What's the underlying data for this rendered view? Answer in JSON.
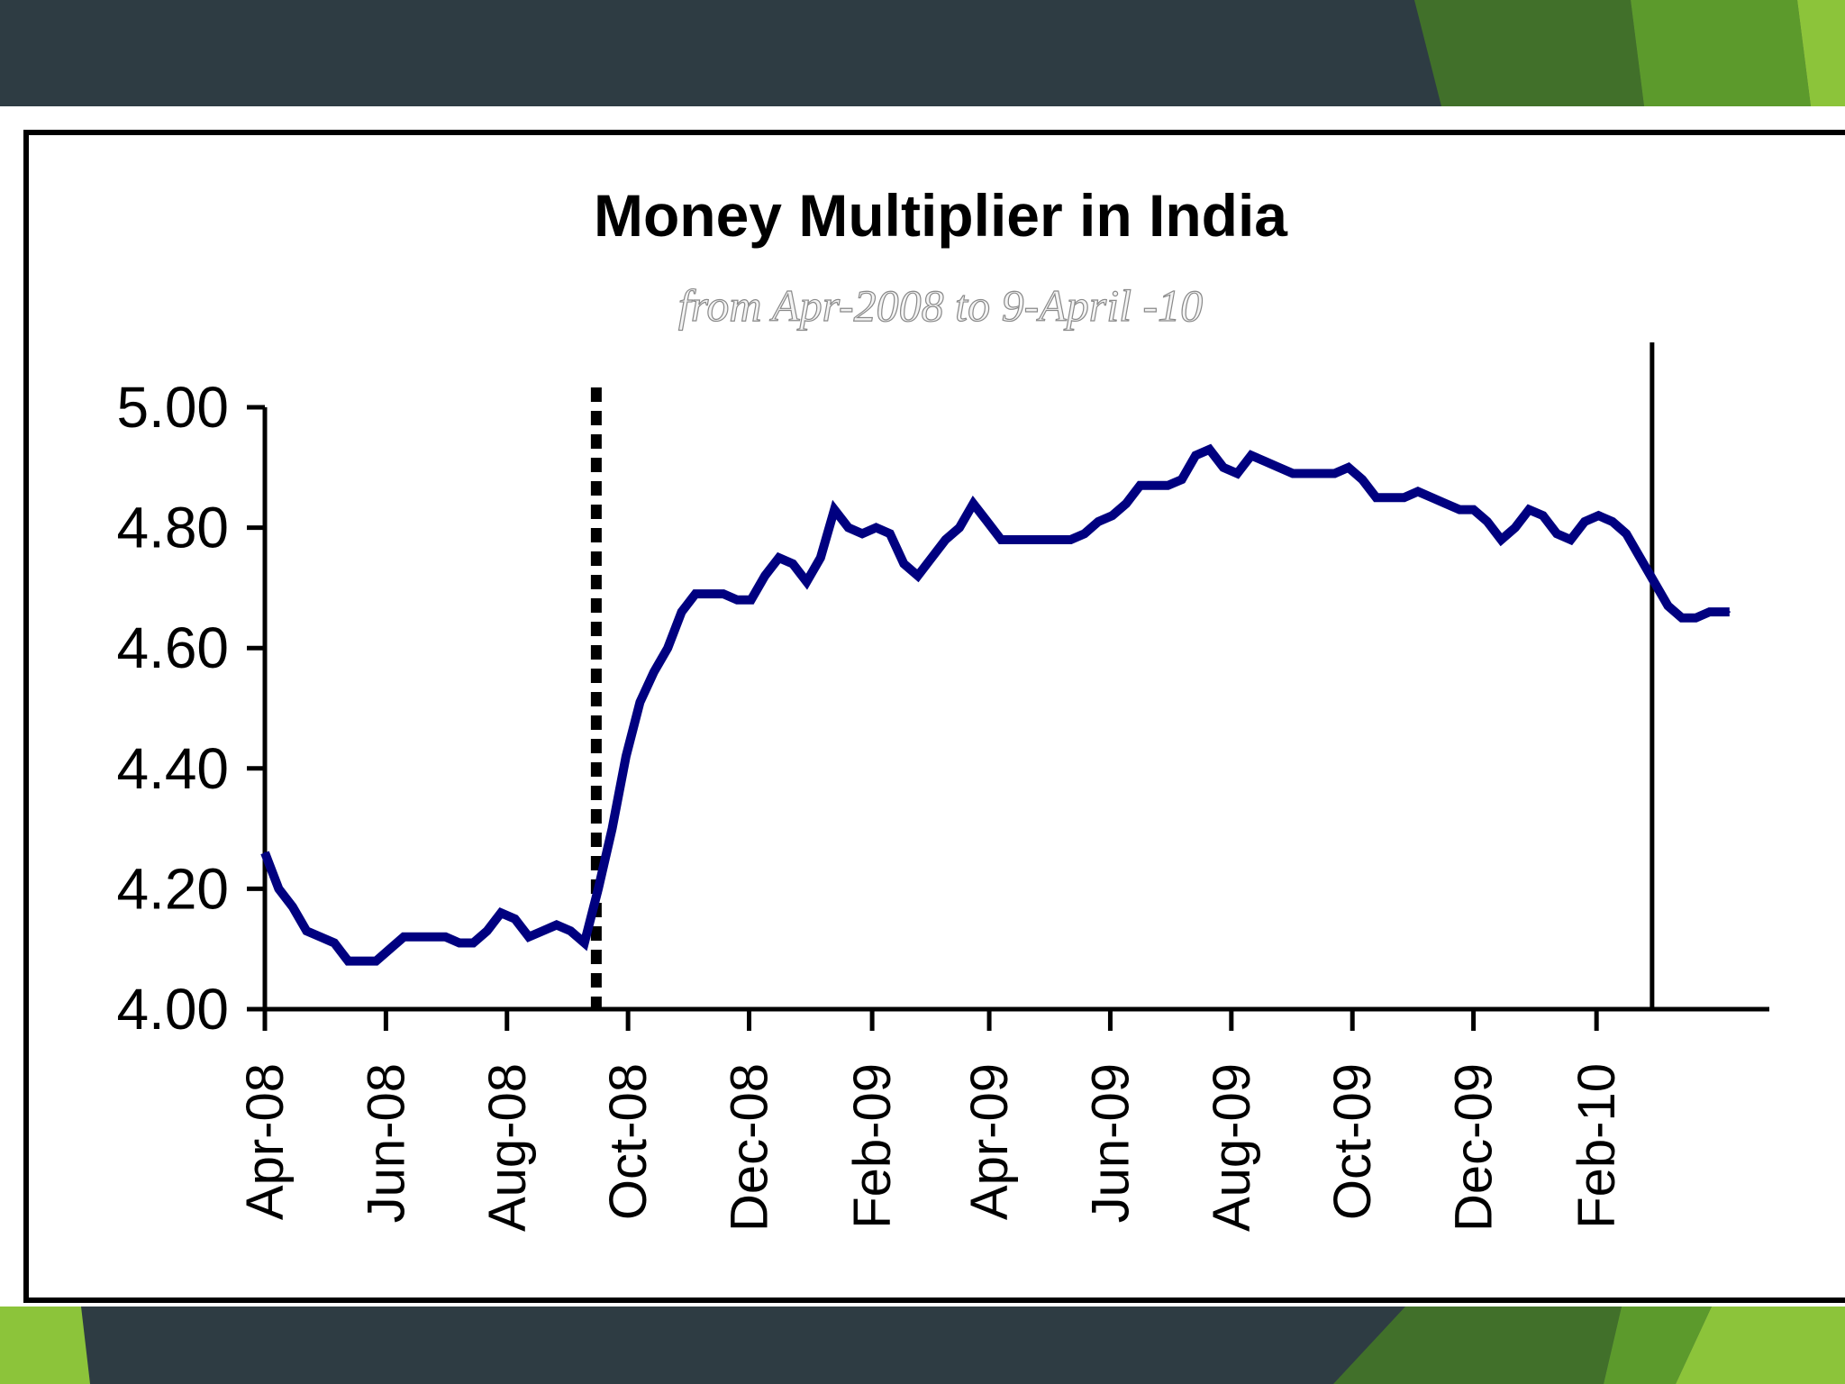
{
  "slide": {
    "colors": {
      "dark_band": "#2e3c43",
      "green_dark": "#41702a",
      "green_mid": "#5c9a2c",
      "green_light": "#8cc43a"
    }
  },
  "chart_data": {
    "type": "line",
    "title": "Money Multiplier in India",
    "subtitle": "from Apr-2008 to 9-April -10",
    "xlabel": "",
    "ylabel": "",
    "ylim": [
      4.0,
      5.0
    ],
    "yticks": [
      "5.00",
      "4.80",
      "4.60",
      "4.40",
      "4.20",
      "4.00"
    ],
    "xticks": [
      "Apr-08",
      "Jun-08",
      "Aug-08",
      "Oct-08",
      "Dec-08",
      "Feb-09",
      "Apr-09",
      "Jun-09",
      "Aug-09",
      "Oct-09",
      "Dec-09",
      "Feb-10"
    ],
    "grid": false,
    "legend": "none",
    "line_color": "#000080",
    "vertical_markers": [
      {
        "x": "2008-09-15",
        "style": "dashed"
      },
      {
        "x": "2010-03-01",
        "style": "solid"
      }
    ],
    "series": [
      {
        "x": [
          "2008-04-01",
          "2008-04-08",
          "2008-04-15",
          "2008-04-22",
          "2008-04-29",
          "2008-05-06",
          "2008-05-13",
          "2008-05-20",
          "2008-05-27",
          "2008-06-03",
          "2008-06-10",
          "2008-06-17",
          "2008-06-24",
          "2008-07-01",
          "2008-07-08",
          "2008-07-15",
          "2008-07-22",
          "2008-07-29",
          "2008-08-05",
          "2008-08-12",
          "2008-08-19",
          "2008-08-26",
          "2008-09-02",
          "2008-09-09",
          "2008-09-16",
          "2008-09-23",
          "2008-09-30",
          "2008-10-07",
          "2008-10-14",
          "2008-10-21",
          "2008-10-28",
          "2008-11-04",
          "2008-11-11",
          "2008-11-18",
          "2008-11-25",
          "2008-12-02",
          "2008-12-09",
          "2008-12-16",
          "2008-12-23",
          "2008-12-30",
          "2009-01-06",
          "2009-01-13",
          "2009-01-20",
          "2009-01-27",
          "2009-02-03",
          "2009-02-10",
          "2009-02-17",
          "2009-02-24",
          "2009-03-03",
          "2009-03-10",
          "2009-03-17",
          "2009-03-24",
          "2009-03-31",
          "2009-04-07",
          "2009-04-14",
          "2009-04-21",
          "2009-04-28",
          "2009-05-05",
          "2009-05-12",
          "2009-05-19",
          "2009-05-26",
          "2009-06-02",
          "2009-06-09",
          "2009-06-16",
          "2009-06-23",
          "2009-06-30",
          "2009-07-07",
          "2009-07-14",
          "2009-07-21",
          "2009-07-28",
          "2009-08-04",
          "2009-08-11",
          "2009-08-18",
          "2009-08-25",
          "2009-09-01",
          "2009-09-08",
          "2009-09-15",
          "2009-09-22",
          "2009-09-29",
          "2009-10-06",
          "2009-10-13",
          "2009-10-20",
          "2009-10-27",
          "2009-11-03",
          "2009-11-10",
          "2009-11-17",
          "2009-11-24",
          "2009-12-01",
          "2009-12-08",
          "2009-12-15",
          "2009-12-22",
          "2009-12-29",
          "2010-01-05",
          "2010-01-12",
          "2010-01-19",
          "2010-01-26",
          "2010-02-02",
          "2010-02-09",
          "2010-02-16",
          "2010-02-23",
          "2010-03-02",
          "2010-03-09",
          "2010-03-16",
          "2010-03-23",
          "2010-03-30",
          "2010-04-09"
        ],
        "values": [
          4.26,
          4.2,
          4.17,
          4.13,
          4.12,
          4.11,
          4.08,
          4.08,
          4.08,
          4.1,
          4.12,
          4.12,
          4.12,
          4.12,
          4.11,
          4.11,
          4.13,
          4.16,
          4.15,
          4.12,
          4.13,
          4.14,
          4.13,
          4.11,
          4.2,
          4.3,
          4.42,
          4.51,
          4.56,
          4.6,
          4.66,
          4.69,
          4.69,
          4.69,
          4.68,
          4.68,
          4.72,
          4.75,
          4.74,
          4.71,
          4.75,
          4.83,
          4.8,
          4.79,
          4.8,
          4.79,
          4.74,
          4.72,
          4.75,
          4.78,
          4.8,
          4.84,
          4.81,
          4.78,
          4.78,
          4.78,
          4.78,
          4.78,
          4.78,
          4.79,
          4.81,
          4.82,
          4.84,
          4.87,
          4.87,
          4.87,
          4.88,
          4.92,
          4.93,
          4.9,
          4.89,
          4.92,
          4.91,
          4.9,
          4.89,
          4.89,
          4.89,
          4.89,
          4.9,
          4.88,
          4.85,
          4.85,
          4.85,
          4.86,
          4.85,
          4.84,
          4.83,
          4.83,
          4.81,
          4.78,
          4.8,
          4.83,
          4.82,
          4.79,
          4.78,
          4.81,
          4.82,
          4.81,
          4.79,
          4.75,
          4.71,
          4.67,
          4.65,
          4.65,
          4.66,
          4.66
        ]
      }
    ]
  }
}
